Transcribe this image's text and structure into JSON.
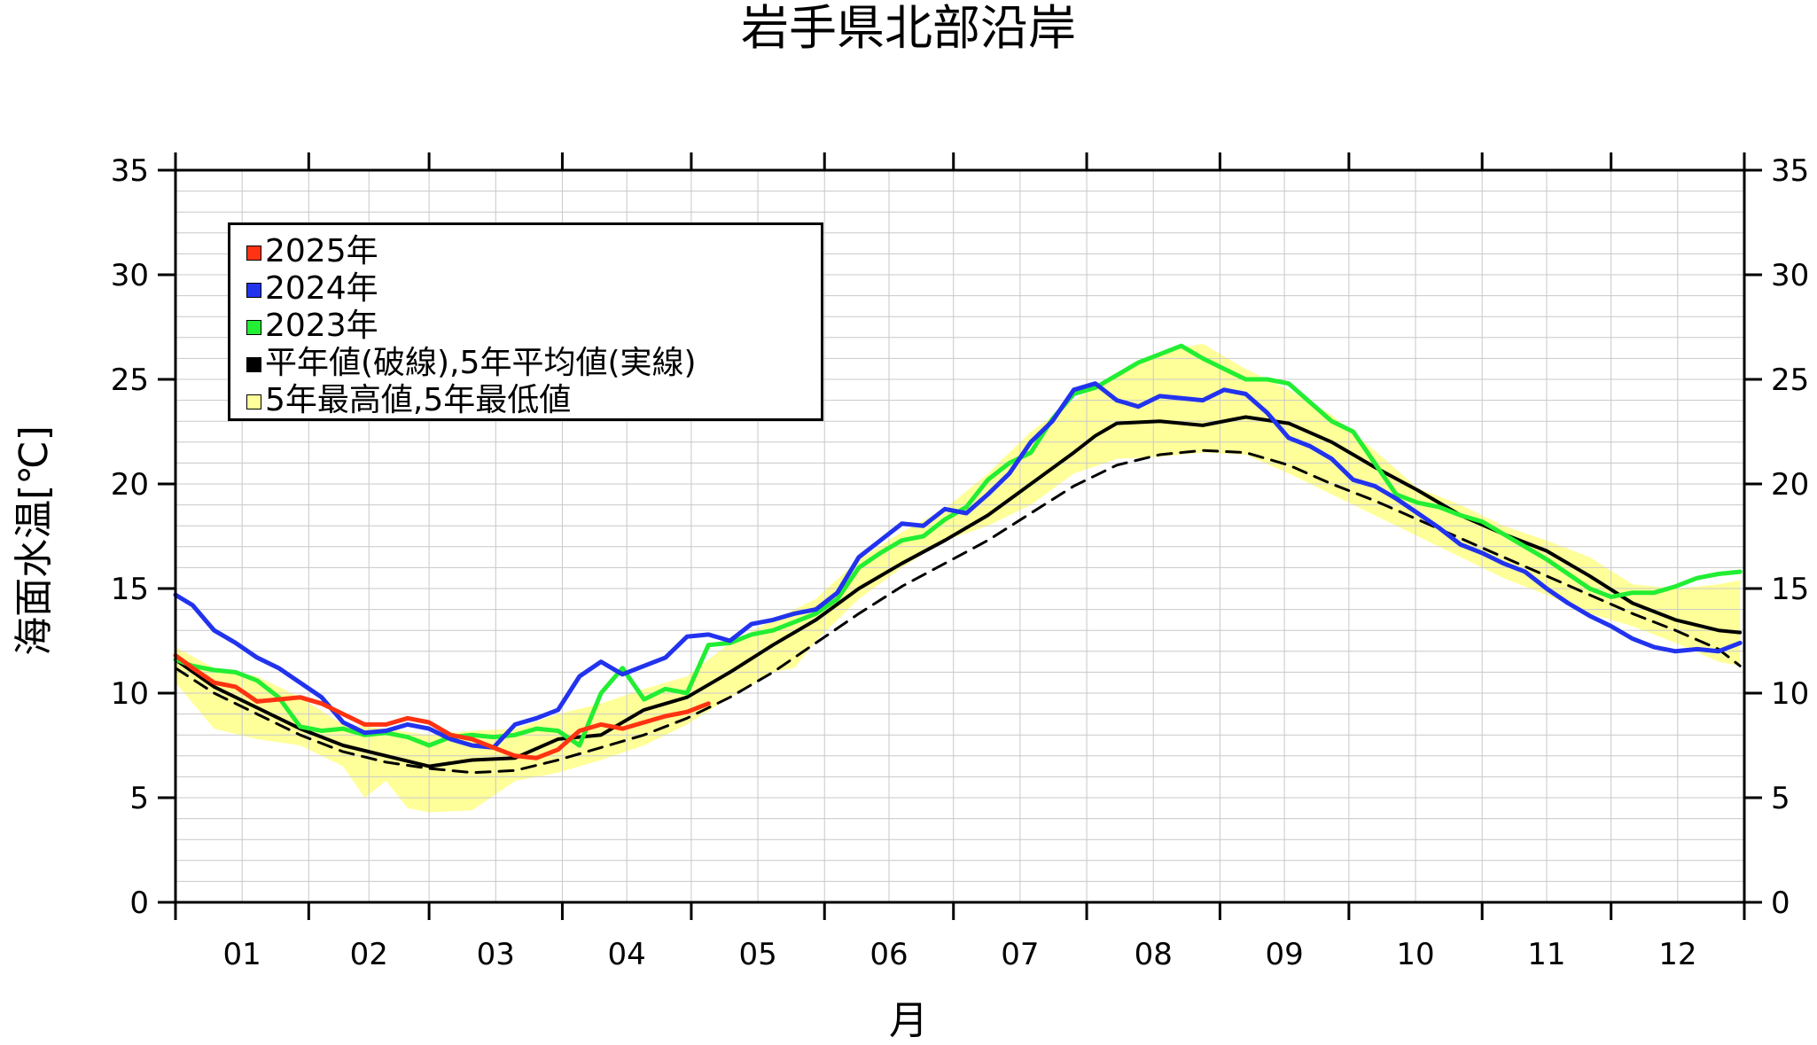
{
  "chart_data": {
    "type": "line",
    "title": "岩手県北部沿岸",
    "ylabel": "海面水温[℃]",
    "xlabel": "月",
    "ylim": [
      0,
      35
    ],
    "yticks": [
      "0",
      "5",
      "10",
      "15",
      "20",
      "25",
      "30",
      "35"
    ],
    "xticks": [
      "01",
      "02",
      "03",
      "04",
      "05",
      "06",
      "07",
      "08",
      "09",
      "10",
      "11",
      "12"
    ],
    "grid": true,
    "legend_position": "top-left",
    "legend": [
      {
        "label": "2025年",
        "color": "#ff3311"
      },
      {
        "label": "2024年",
        "color": "#2233ee"
      },
      {
        "label": "2023年",
        "color": "#22ee33"
      },
      {
        "label": "平年値(破線),5年平均値(実線)",
        "color": "#000000"
      },
      {
        "label": "5年最高値,5年最低値",
        "color": "#ffff99"
      }
    ],
    "series": [
      {
        "name": "2025年",
        "color": "#ff3311",
        "x": [
          1,
          5,
          10,
          15,
          20,
          25,
          30,
          35,
          40,
          45,
          50,
          55,
          60,
          65,
          70,
          75,
          80,
          85,
          90,
          95,
          100,
          105,
          110,
          115,
          120,
          125
        ],
        "y": [
          11.8,
          11.2,
          10.5,
          10.3,
          9.6,
          9.7,
          9.8,
          9.5,
          9.0,
          8.5,
          8.5,
          8.8,
          8.6,
          8.0,
          7.8,
          7.4,
          7.0,
          6.9,
          7.3,
          8.2,
          8.5,
          8.3,
          8.6,
          8.9,
          9.1,
          9.5
        ]
      },
      {
        "name": "2024年",
        "color": "#2233ee",
        "x": [
          1,
          5,
          10,
          15,
          20,
          25,
          30,
          35,
          40,
          45,
          50,
          55,
          60,
          65,
          70,
          75,
          80,
          85,
          90,
          95,
          100,
          105,
          110,
          115,
          120,
          125,
          130,
          135,
          140,
          145,
          150,
          155,
          160,
          165,
          170,
          175,
          180,
          185,
          190,
          195,
          200,
          205,
          210,
          215,
          220,
          225,
          230,
          235,
          240,
          245,
          250,
          255,
          260,
          265,
          270,
          275,
          280,
          285,
          290,
          295,
          300,
          305,
          310,
          315,
          320,
          325,
          330,
          335,
          340,
          345,
          350,
          355,
          360,
          365
        ],
        "y": [
          14.7,
          14.2,
          13.0,
          12.4,
          11.7,
          11.2,
          10.5,
          9.8,
          8.6,
          8.1,
          8.2,
          8.5,
          8.3,
          7.8,
          7.5,
          7.4,
          8.5,
          8.8,
          9.2,
          10.8,
          11.5,
          10.9,
          11.3,
          11.7,
          12.7,
          12.8,
          12.5,
          13.3,
          13.5,
          13.8,
          14.0,
          14.8,
          16.5,
          17.3,
          18.1,
          18.0,
          18.8,
          18.6,
          19.5,
          20.5,
          22.0,
          23.0,
          24.5,
          24.8,
          24.0,
          23.7,
          24.2,
          24.1,
          24.0,
          24.5,
          24.3,
          23.4,
          22.2,
          21.8,
          21.2,
          20.2,
          19.9,
          19.3,
          18.6,
          17.9,
          17.1,
          16.7,
          16.2,
          15.8,
          15.0,
          14.3,
          13.7,
          13.2,
          12.6,
          12.2,
          12.0,
          12.1,
          12.0,
          12.4
        ]
      },
      {
        "name": "2023年",
        "color": "#22ee33",
        "x": [
          1,
          5,
          10,
          15,
          20,
          25,
          30,
          35,
          40,
          45,
          50,
          55,
          60,
          65,
          70,
          75,
          80,
          85,
          90,
          95,
          100,
          105,
          110,
          115,
          120,
          125,
          130,
          135,
          140,
          145,
          150,
          155,
          160,
          165,
          170,
          175,
          180,
          185,
          190,
          195,
          200,
          205,
          210,
          215,
          220,
          225,
          230,
          235,
          240,
          245,
          250,
          255,
          260,
          265,
          270,
          275,
          280,
          285,
          290,
          295,
          300,
          305,
          310,
          315,
          320,
          325,
          330,
          335,
          340,
          345,
          350,
          355,
          360,
          365
        ],
        "y": [
          11.6,
          11.3,
          11.1,
          11.0,
          10.6,
          9.8,
          8.4,
          8.2,
          8.3,
          8.0,
          8.1,
          7.9,
          7.5,
          7.9,
          8.0,
          7.9,
          8.0,
          8.3,
          8.2,
          7.5,
          10.0,
          11.2,
          9.7,
          10.2,
          10.0,
          12.3,
          12.4,
          12.8,
          13.0,
          13.4,
          13.8,
          14.5,
          16.0,
          16.7,
          17.3,
          17.5,
          18.3,
          18.9,
          20.2,
          21.0,
          21.5,
          23.1,
          24.3,
          24.6,
          25.2,
          25.8,
          26.2,
          26.6,
          26.0,
          25.5,
          25.0,
          25.0,
          24.8,
          23.9,
          23.0,
          22.5,
          21.0,
          19.5,
          19.1,
          18.9,
          18.5,
          18.2,
          17.6,
          17.0,
          16.4,
          15.7,
          15.0,
          14.6,
          14.8,
          14.8,
          15.1,
          15.5,
          15.7,
          15.8
        ]
      },
      {
        "name": "5年平均値",
        "color": "#000000",
        "style": "solid",
        "x": [
          1,
          10,
          20,
          30,
          40,
          50,
          60,
          70,
          80,
          90,
          100,
          110,
          120,
          130,
          140,
          150,
          160,
          170,
          180,
          190,
          200,
          210,
          215,
          220,
          230,
          240,
          250,
          260,
          270,
          280,
          290,
          300,
          310,
          320,
          330,
          340,
          350,
          360,
          365
        ],
        "y": [
          11.6,
          10.3,
          9.3,
          8.3,
          7.5,
          7.0,
          6.5,
          6.8,
          6.9,
          7.8,
          8.0,
          9.2,
          9.8,
          11.0,
          12.3,
          13.5,
          15.0,
          16.2,
          17.3,
          18.5,
          20.0,
          21.5,
          22.3,
          22.9,
          23.0,
          22.8,
          23.2,
          22.9,
          22.0,
          20.8,
          19.7,
          18.5,
          17.6,
          16.8,
          15.6,
          14.3,
          13.5,
          13.0,
          12.9
        ]
      },
      {
        "name": "平年値",
        "color": "#000000",
        "style": "dashed",
        "x": [
          1,
          10,
          20,
          30,
          40,
          50,
          60,
          70,
          80,
          90,
          100,
          110,
          120,
          130,
          140,
          150,
          160,
          170,
          180,
          190,
          200,
          210,
          220,
          230,
          240,
          250,
          260,
          270,
          280,
          290,
          300,
          310,
          320,
          330,
          340,
          350,
          360,
          365
        ],
        "y": [
          11.2,
          10.0,
          9.0,
          8.0,
          7.2,
          6.7,
          6.4,
          6.2,
          6.3,
          6.8,
          7.4,
          8.0,
          8.8,
          9.8,
          11.0,
          12.4,
          13.8,
          15.1,
          16.2,
          17.3,
          18.6,
          19.9,
          20.9,
          21.4,
          21.6,
          21.5,
          20.9,
          20.0,
          19.2,
          18.3,
          17.4,
          16.5,
          15.6,
          14.7,
          13.8,
          13.0,
          12.1,
          11.3
        ]
      },
      {
        "name": "5年最高値",
        "color": "#ffff99",
        "band": "upper",
        "x": [
          1,
          10,
          20,
          30,
          40,
          50,
          60,
          70,
          80,
          90,
          100,
          110,
          120,
          130,
          140,
          150,
          160,
          170,
          180,
          190,
          200,
          210,
          220,
          230,
          240,
          250,
          260,
          270,
          280,
          290,
          300,
          310,
          320,
          330,
          340,
          350,
          360,
          365
        ],
        "y": [
          12.2,
          11.2,
          10.8,
          9.8,
          8.5,
          8.3,
          8.0,
          8.2,
          8.3,
          9.0,
          9.5,
          10.2,
          10.8,
          12.4,
          13.5,
          14.5,
          16.4,
          17.7,
          18.8,
          20.5,
          22.5,
          24.0,
          25.3,
          26.3,
          26.7,
          25.5,
          24.5,
          23.3,
          21.6,
          19.8,
          19.0,
          18.0,
          17.3,
          16.5,
          15.2,
          15.0,
          15.2,
          15.4
        ]
      },
      {
        "name": "5年最低値",
        "color": "#ffff99",
        "band": "lower",
        "x": [
          1,
          10,
          20,
          30,
          40,
          45,
          50,
          55,
          60,
          70,
          80,
          90,
          100,
          110,
          120,
          130,
          140,
          145,
          150,
          160,
          170,
          180,
          190,
          200,
          210,
          220,
          230,
          240,
          250,
          260,
          270,
          280,
          290,
          300,
          310,
          320,
          330,
          340,
          350,
          360,
          365
        ],
        "y": [
          10.5,
          8.3,
          7.8,
          7.5,
          6.5,
          5.0,
          5.8,
          4.5,
          4.3,
          4.4,
          5.8,
          6.2,
          6.8,
          7.5,
          8.5,
          9.8,
          11.0,
          11.2,
          12.5,
          14.5,
          16.0,
          17.3,
          18.0,
          19.0,
          20.5,
          21.2,
          21.3,
          21.5,
          21.4,
          20.5,
          19.5,
          18.5,
          17.5,
          16.5,
          15.5,
          14.7,
          13.8,
          13.2,
          12.4,
          11.5,
          11.3
        ]
      }
    ]
  }
}
